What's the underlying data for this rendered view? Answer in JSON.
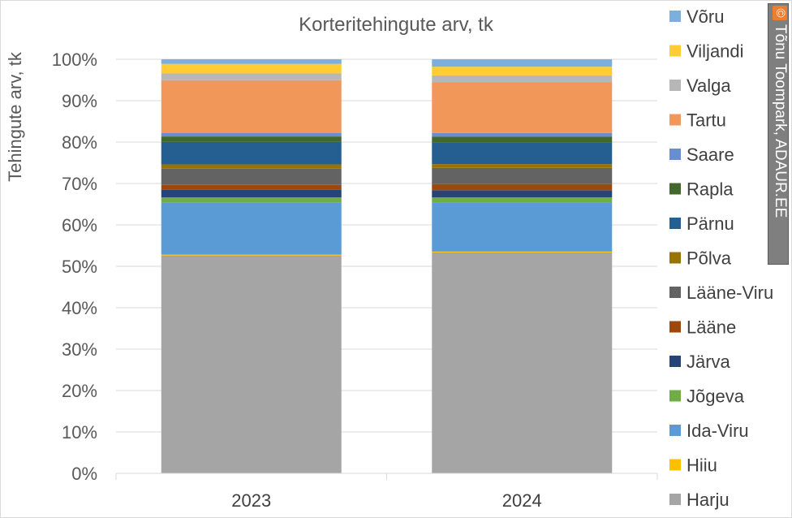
{
  "chart_data": {
    "type": "bar",
    "stacked": "percent",
    "title": "Korteritehingute arv, tk",
    "ylabel": "Tehingute arv, tk",
    "xlabel": "",
    "ylim": [
      0,
      100
    ],
    "y_ticks": [
      "0%",
      "10%",
      "20%",
      "30%",
      "40%",
      "50%",
      "60%",
      "70%",
      "80%",
      "90%",
      "100%"
    ],
    "categories": [
      "2023",
      "2024"
    ],
    "grid": true,
    "legend_position": "right",
    "series": [
      {
        "name": "Harju",
        "color": "#a5a5a5",
        "values": [
          52.2,
          53.3
        ]
      },
      {
        "name": "Hiiu",
        "color": "#ffc000",
        "values": [
          0.2,
          0.2
        ]
      },
      {
        "name": "Ida-Viru",
        "color": "#5b9bd5",
        "values": [
          12.5,
          11.9
        ]
      },
      {
        "name": "Jõgeva",
        "color": "#70ad47",
        "values": [
          1.2,
          1.2
        ]
      },
      {
        "name": "Järva",
        "color": "#264478",
        "values": [
          1.8,
          1.7
        ]
      },
      {
        "name": "Lääne",
        "color": "#9e480e",
        "values": [
          1.2,
          1.5
        ]
      },
      {
        "name": "Lääne-Viru",
        "color": "#636363",
        "values": [
          3.9,
          3.9
        ]
      },
      {
        "name": "Põlva",
        "color": "#997300",
        "values": [
          1.0,
          0.9
        ]
      },
      {
        "name": "Pärnu",
        "color": "#255e91",
        "values": [
          5.4,
          5.2
        ]
      },
      {
        "name": "Rapla",
        "color": "#43682b",
        "values": [
          1.3,
          1.4
        ]
      },
      {
        "name": "Saare",
        "color": "#698ed0",
        "values": [
          0.8,
          0.9
        ]
      },
      {
        "name": "Tartu",
        "color": "#f1975a",
        "values": [
          12.7,
          12.3
        ]
      },
      {
        "name": "Valga",
        "color": "#b7b7b7",
        "values": [
          1.6,
          1.6
        ]
      },
      {
        "name": "Viljandi",
        "color": "#ffcd33",
        "values": [
          2.3,
          2.1
        ]
      },
      {
        "name": "Võru",
        "color": "#7cafdd",
        "values": [
          1.1,
          1.8
        ]
      }
    ]
  },
  "copyright": {
    "symbol": "©",
    "text": "Tõnu Toompark, ADAUR.EE"
  }
}
